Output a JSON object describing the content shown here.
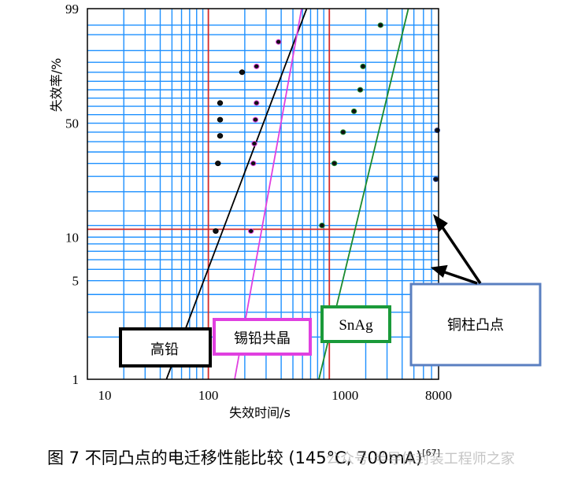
{
  "chart_data": {
    "type": "scatter",
    "x_scale": "log",
    "y_scale": "weibull probability",
    "xlim": [
      10,
      8000
    ],
    "ylim": [
      1,
      99
    ],
    "xlabel": "失效时间/s",
    "ylabel": "失效率/%",
    "x_tick_labels": [
      "10",
      "100",
      "1000",
      "8000"
    ],
    "y_tick_labels": [
      "1",
      "5",
      "10",
      "50",
      "99"
    ],
    "grid": true,
    "series": [
      {
        "name": "高铅",
        "color": "#000000",
        "points": [
          [
            120,
            30
          ],
          [
            125,
            43
          ],
          [
            125,
            52
          ],
          [
            125,
            62
          ],
          [
            115,
            11
          ],
          [
            190,
            80
          ]
        ],
        "fit_line": [
          [
            45,
            1
          ],
          [
            650,
            99
          ]
        ]
      },
      {
        "name": "锡铅共晶",
        "color": "#e040e0",
        "points": [
          [
            225,
            11
          ],
          [
            235,
            30
          ],
          [
            240,
            39
          ],
          [
            245,
            52
          ],
          [
            250,
            62
          ],
          [
            250,
            83
          ],
          [
            380,
            93
          ]
        ],
        "fit_line": [
          [
            165,
            1
          ],
          [
            590,
            99
          ]
        ]
      },
      {
        "name": "SnAg",
        "color": "#1a8a2e",
        "points": [
          [
            870,
            12
          ],
          [
            1100,
            30
          ],
          [
            1300,
            45
          ],
          [
            1600,
            57
          ],
          [
            1800,
            70
          ],
          [
            1900,
            83
          ],
          [
            2650,
            97
          ]
        ],
        "fit_line": [
          [
            820,
            1
          ],
          [
            4500,
            99
          ]
        ]
      },
      {
        "name": "铜柱凸点",
        "color": "#1f3a8a",
        "points": [
          [
            7600,
            24
          ],
          [
            7800,
            46
          ]
        ],
        "fit_line": []
      }
    ],
    "annotation_arrows_target": "铜柱凸点"
  },
  "caption": {
    "text": "图 7  不同凸点的电迁移性能比较 (145°C, 700mA)",
    "ref": "[67]"
  },
  "watermark": "公众号·半导体封装工程师之家"
}
